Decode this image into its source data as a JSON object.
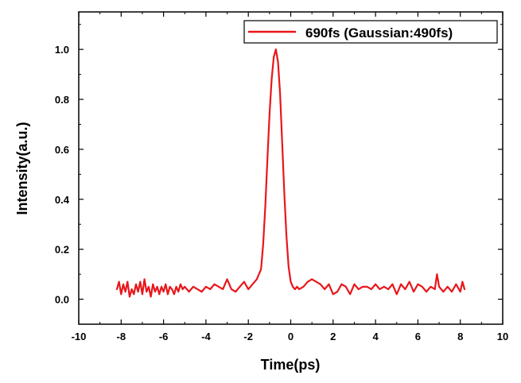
{
  "chart_data": {
    "type": "line",
    "xlabel": "Time(ps)",
    "ylabel": "Intensity(a.u.)",
    "xlim": [
      -10,
      10
    ],
    "ylim": [
      -0.1,
      1.15
    ],
    "x_ticks": [
      -10,
      -8,
      -6,
      -4,
      -2,
      0,
      2,
      4,
      6,
      8,
      10
    ],
    "x_tick_labels": [
      "-10",
      "-8",
      "-6",
      "-4",
      "-2",
      "0",
      "2",
      "4",
      "6",
      "8",
      "10"
    ],
    "y_ticks": [
      0.0,
      0.2,
      0.4,
      0.6,
      0.8,
      1.0
    ],
    "y_tick_labels": [
      "0.0",
      "0.2",
      "0.4",
      "0.6",
      "0.8",
      "1.0"
    ],
    "grid": false,
    "legend_position": "top-right",
    "series": [
      {
        "name": "690fs (Gaussian:490fs)",
        "color": "#e8171b",
        "x": [
          -8.2,
          -8.1,
          -8.0,
          -7.9,
          -7.8,
          -7.7,
          -7.6,
          -7.5,
          -7.4,
          -7.3,
          -7.2,
          -7.1,
          -7.0,
          -6.9,
          -6.8,
          -6.7,
          -6.6,
          -6.5,
          -6.4,
          -6.3,
          -6.2,
          -6.1,
          -6.0,
          -5.9,
          -5.8,
          -5.7,
          -5.6,
          -5.5,
          -5.4,
          -5.3,
          -5.2,
          -5.1,
          -5.0,
          -4.8,
          -4.6,
          -4.4,
          -4.2,
          -4.0,
          -3.8,
          -3.6,
          -3.4,
          -3.2,
          -3.0,
          -2.8,
          -2.6,
          -2.4,
          -2.2,
          -2.0,
          -1.8,
          -1.6,
          -1.4,
          -1.3,
          -1.2,
          -1.1,
          -1.0,
          -0.9,
          -0.8,
          -0.7,
          -0.6,
          -0.5,
          -0.4,
          -0.3,
          -0.2,
          -0.1,
          0.0,
          0.1,
          0.2,
          0.3,
          0.4,
          0.6,
          0.8,
          1.0,
          1.2,
          1.4,
          1.6,
          1.8,
          2.0,
          2.2,
          2.4,
          2.6,
          2.8,
          3.0,
          3.2,
          3.4,
          3.6,
          3.8,
          4.0,
          4.2,
          4.4,
          4.6,
          4.8,
          5.0,
          5.2,
          5.4,
          5.6,
          5.8,
          6.0,
          6.2,
          6.4,
          6.6,
          6.8,
          6.9,
          7.0,
          7.2,
          7.4,
          7.6,
          7.8,
          8.0,
          8.1,
          8.2
        ],
        "y": [
          0.04,
          0.07,
          0.02,
          0.06,
          0.03,
          0.07,
          0.01,
          0.04,
          0.02,
          0.06,
          0.03,
          0.07,
          0.02,
          0.08,
          0.03,
          0.05,
          0.01,
          0.06,
          0.03,
          0.05,
          0.02,
          0.05,
          0.03,
          0.06,
          0.02,
          0.05,
          0.04,
          0.02,
          0.05,
          0.03,
          0.06,
          0.04,
          0.05,
          0.03,
          0.05,
          0.04,
          0.03,
          0.05,
          0.04,
          0.06,
          0.05,
          0.04,
          0.08,
          0.04,
          0.03,
          0.05,
          0.07,
          0.04,
          0.06,
          0.08,
          0.12,
          0.22,
          0.37,
          0.56,
          0.74,
          0.88,
          0.97,
          1.0,
          0.95,
          0.82,
          0.62,
          0.42,
          0.25,
          0.13,
          0.07,
          0.05,
          0.04,
          0.05,
          0.04,
          0.05,
          0.07,
          0.08,
          0.07,
          0.06,
          0.04,
          0.06,
          0.02,
          0.03,
          0.06,
          0.05,
          0.02,
          0.06,
          0.04,
          0.05,
          0.05,
          0.04,
          0.06,
          0.04,
          0.05,
          0.04,
          0.06,
          0.02,
          0.06,
          0.04,
          0.07,
          0.03,
          0.06,
          0.05,
          0.03,
          0.05,
          0.04,
          0.1,
          0.05,
          0.03,
          0.05,
          0.03,
          0.06,
          0.03,
          0.07,
          0.04
        ]
      }
    ]
  }
}
